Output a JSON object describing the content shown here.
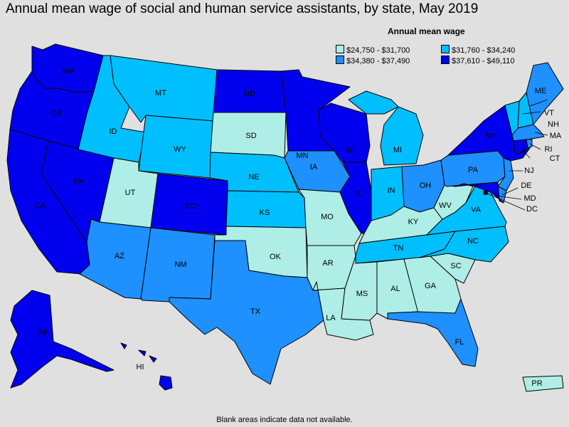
{
  "title": "Annual mean wage of social and human service assistants, by state, May 2019",
  "legend": {
    "title": "Annual mean wage",
    "items": [
      {
        "label": "$24,750 - $31,700",
        "color": "#aeeee6"
      },
      {
        "label": "$31,760 - $34,240",
        "color": "#00bfff"
      },
      {
        "label": "$34,380 - $37,490",
        "color": "#1e90ff"
      },
      {
        "label": "$37,610 - $49,110",
        "color": "#0000ee"
      }
    ]
  },
  "footnote": "Blank areas indicate data not available.",
  "states": {
    "WA": {
      "label": "WA",
      "tier": 3
    },
    "OR": {
      "label": "OR",
      "tier": 3
    },
    "CA": {
      "label": "CA",
      "tier": 3
    },
    "NV": {
      "label": "NV",
      "tier": 3
    },
    "ID": {
      "label": "ID",
      "tier": 1
    },
    "MT": {
      "label": "MT",
      "tier": 1
    },
    "WY": {
      "label": "WY",
      "tier": 1
    },
    "UT": {
      "label": "UT",
      "tier": 0
    },
    "CO": {
      "label": "CO",
      "tier": 3
    },
    "AZ": {
      "label": "AZ",
      "tier": 2
    },
    "NM": {
      "label": "NM",
      "tier": 2
    },
    "ND": {
      "label": "ND",
      "tier": 3
    },
    "SD": {
      "label": "SD",
      "tier": 0
    },
    "NE": {
      "label": "NE",
      "tier": 1
    },
    "KS": {
      "label": "KS",
      "tier": 1
    },
    "OK": {
      "label": "OK",
      "tier": 0
    },
    "TX": {
      "label": "TX",
      "tier": 2
    },
    "MN": {
      "label": "MN",
      "tier": 3
    },
    "IA": {
      "label": "IA",
      "tier": 2
    },
    "MO": {
      "label": "MO",
      "tier": 0
    },
    "AR": {
      "label": "AR",
      "tier": 0
    },
    "LA": {
      "label": "LA",
      "tier": 0
    },
    "WI": {
      "label": "WI",
      "tier": 3
    },
    "IL": {
      "label": "IL",
      "tier": 3
    },
    "MI": {
      "label": "MI",
      "tier": 1
    },
    "IN": {
      "label": "IN",
      "tier": 1
    },
    "OH": {
      "label": "OH",
      "tier": 2
    },
    "KY": {
      "label": "KY",
      "tier": 0
    },
    "TN": {
      "label": "TN",
      "tier": 1
    },
    "MS": {
      "label": "MS",
      "tier": 0
    },
    "AL": {
      "label": "AL",
      "tier": 0
    },
    "GA": {
      "label": "GA",
      "tier": 0
    },
    "FL": {
      "label": "FL",
      "tier": 2
    },
    "SC": {
      "label": "SC",
      "tier": 0
    },
    "NC": {
      "label": "NC",
      "tier": 1
    },
    "VA": {
      "label": "VA",
      "tier": 1
    },
    "WV": {
      "label": "WV",
      "tier": 0
    },
    "PA": {
      "label": "PA",
      "tier": 2
    },
    "NY": {
      "label": "NY",
      "tier": 3
    },
    "VT": {
      "label": "VT",
      "tier": 1
    },
    "NH": {
      "label": "NH",
      "tier": 1
    },
    "ME": {
      "label": "ME",
      "tier": 2
    },
    "MA": {
      "label": "MA",
      "tier": 2
    },
    "RI": {
      "label": "RI",
      "tier": 2
    },
    "CT": {
      "label": "CT",
      "tier": 3
    },
    "NJ": {
      "label": "NJ",
      "tier": 2
    },
    "DE": {
      "label": "DE",
      "tier": 2
    },
    "MD": {
      "label": "MD",
      "tier": 3
    },
    "DC": {
      "label": "DC",
      "tier": 3
    },
    "AK": {
      "label": "AK",
      "tier": 3
    },
    "HI": {
      "label": "HI",
      "tier": 3
    },
    "PR": {
      "label": "PR",
      "tier": 0
    }
  }
}
